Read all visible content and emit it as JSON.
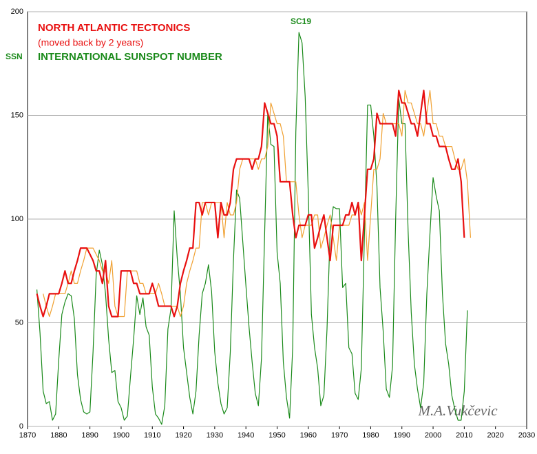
{
  "chart_data": {
    "type": "line",
    "title": "NORTH ATLANTIC TECTONICS",
    "subtitle": "(moved back by 2 years)",
    "ylabel": "SSN",
    "annotations": [
      "SC19",
      "M.A.Vukčevic"
    ],
    "xlim": [
      1870,
      2030
    ],
    "xticks": [
      1870,
      1880,
      1890,
      1900,
      1910,
      1920,
      1930,
      1940,
      1950,
      1960,
      1970,
      1980,
      1990,
      2000,
      2010,
      2020,
      2030
    ],
    "ylim": [
      0,
      200
    ],
    "yticks": [
      0,
      50,
      100,
      150,
      200
    ],
    "grid": true,
    "x": [
      1873,
      1874,
      1875,
      1876,
      1877,
      1878,
      1879,
      1880,
      1881,
      1882,
      1883,
      1884,
      1885,
      1886,
      1887,
      1888,
      1889,
      1890,
      1891,
      1892,
      1893,
      1894,
      1895,
      1896,
      1897,
      1898,
      1899,
      1900,
      1901,
      1902,
      1903,
      1904,
      1905,
      1906,
      1907,
      1908,
      1909,
      1910,
      1911,
      1912,
      1913,
      1914,
      1915,
      1916,
      1917,
      1918,
      1919,
      1920,
      1921,
      1922,
      1923,
      1924,
      1925,
      1926,
      1927,
      1928,
      1929,
      1930,
      1931,
      1932,
      1933,
      1934,
      1935,
      1936,
      1937,
      1938,
      1939,
      1940,
      1941,
      1942,
      1943,
      1944,
      1945,
      1946,
      1947,
      1948,
      1949,
      1950,
      1951,
      1952,
      1953,
      1954,
      1955,
      1956,
      1957,
      1958,
      1959,
      1960,
      1961,
      1962,
      1963,
      1964,
      1965,
      1966,
      1967,
      1968,
      1969,
      1970,
      1971,
      1972,
      1973,
      1974,
      1975,
      1976,
      1977,
      1978,
      1979,
      1980,
      1981,
      1982,
      1983,
      1984,
      1985,
      1986,
      1987,
      1988,
      1989,
      1990,
      1991,
      1992,
      1993,
      1994,
      1995,
      1996,
      1997,
      1998,
      1999,
      2000,
      2001,
      2002,
      2003,
      2004,
      2005,
      2006,
      2007,
      2008,
      2009,
      2010,
      2011,
      2012
    ],
    "series": [
      {
        "name": "INTERNATIONAL SUNSPOT NUMBER",
        "color": "#1a8a1a",
        "width": 1.2,
        "values": [
          66,
          45,
          17,
          11,
          12,
          3,
          6,
          32,
          54,
          60,
          64,
          63,
          52,
          25,
          13,
          7,
          6,
          7,
          36,
          73,
          85,
          78,
          64,
          42,
          26,
          27,
          12,
          9,
          3,
          5,
          24,
          42,
          63,
          54,
          62,
          48,
          44,
          19,
          6,
          4,
          1,
          10,
          47,
          57,
          104,
          81,
          64,
          38,
          26,
          14,
          6,
          17,
          44,
          64,
          69,
          78,
          65,
          36,
          21,
          11,
          6,
          9,
          36,
          80,
          114,
          110,
          89,
          68,
          48,
          31,
          16,
          10,
          33,
          93,
          151,
          136,
          135,
          84,
          69,
          31,
          14,
          4,
          38,
          142,
          190,
          185,
          159,
          112,
          54,
          38,
          28,
          10,
          15,
          47,
          94,
          106,
          105,
          105,
          67,
          69,
          38,
          35,
          16,
          13,
          28,
          93,
          155,
          155,
          140,
          116,
          67,
          46,
          18,
          14,
          29,
          100,
          158,
          146,
          146,
          94,
          55,
          30,
          18,
          9,
          21,
          64,
          93,
          120,
          111,
          104,
          64,
          40,
          30,
          15,
          8,
          3,
          3,
          17,
          56,
          null
        ]
      },
      {
        "color": "#f0a030",
        "width": 1.2,
        "values": [
          null,
          null,
          64,
          58,
          53,
          58,
          64,
          64,
          64,
          64,
          69,
          75,
          69,
          69,
          75,
          80,
          86,
          86,
          86,
          83,
          80,
          75,
          75,
          69,
          80,
          58,
          53,
          53,
          53,
          75,
          75,
          75,
          75,
          69,
          69,
          64,
          64,
          64,
          64,
          69,
          64,
          58,
          58,
          58,
          58,
          58,
          53,
          58,
          69,
          75,
          80,
          86,
          86,
          108,
          108,
          102,
          108,
          108,
          108,
          108,
          91,
          108,
          102,
          102,
          108,
          124,
          129,
          129,
          129,
          129,
          129,
          124,
          129,
          129,
          135,
          156,
          151,
          146,
          146,
          140,
          118,
          118,
          118,
          118,
          102,
          91,
          97,
          97,
          97,
          102,
          102,
          86,
          91,
          97,
          102,
          91,
          80,
          97,
          97,
          97,
          97,
          102,
          102,
          108,
          102,
          108,
          80,
          102,
          124,
          124,
          129,
          151,
          146,
          146,
          146,
          146,
          146,
          140,
          162,
          156,
          156,
          151,
          146,
          146,
          140,
          151,
          162,
          146,
          146,
          140,
          140,
          135,
          135,
          135,
          129,
          124,
          124,
          129,
          118,
          91
        ]
      },
      {
        "name": "NORTH ATLANTIC TECTONICS",
        "color": "#e81010",
        "width": 2.2,
        "values": [
          64,
          58,
          53,
          58,
          64,
          64,
          64,
          64,
          69,
          75,
          69,
          69,
          75,
          80,
          86,
          86,
          86,
          83,
          80,
          75,
          75,
          69,
          80,
          58,
          53,
          53,
          53,
          75,
          75,
          75,
          75,
          69,
          69,
          64,
          64,
          64,
          64,
          69,
          64,
          58,
          58,
          58,
          58,
          58,
          53,
          58,
          69,
          75,
          80,
          86,
          86,
          108,
          108,
          102,
          108,
          108,
          108,
          108,
          91,
          108,
          102,
          102,
          108,
          124,
          129,
          129,
          129,
          129,
          129,
          124,
          129,
          129,
          135,
          156,
          151,
          146,
          146,
          140,
          118,
          118,
          118,
          118,
          102,
          91,
          97,
          97,
          97,
          102,
          102,
          86,
          91,
          97,
          102,
          91,
          80,
          97,
          97,
          97,
          97,
          102,
          102,
          108,
          102,
          108,
          80,
          102,
          124,
          124,
          129,
          151,
          146,
          146,
          146,
          146,
          146,
          140,
          162,
          156,
          156,
          151,
          146,
          146,
          140,
          151,
          162,
          146,
          146,
          140,
          140,
          135,
          135,
          135,
          129,
          124,
          124,
          129,
          118,
          91,
          null,
          null
        ]
      }
    ]
  }
}
